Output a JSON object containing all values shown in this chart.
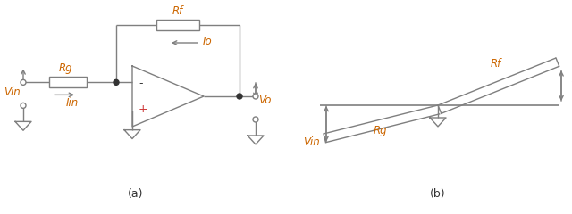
{
  "fig_width": 6.4,
  "fig_height": 2.4,
  "dpi": 100,
  "bg_color": "#ffffff",
  "line_color": "#7f7f7f",
  "text_color_orange": "#cc6600",
  "text_color_black": "#333333",
  "label_a": "(a)",
  "label_b": "(b)",
  "Rf_label": "Rf",
  "Rg_label": "Rg",
  "Io_label": "Io",
  "Iin_label": "Iin",
  "Vin_label": "Vin",
  "Vo_label": "Vo",
  "plus_label": "+",
  "minus_label": "-"
}
